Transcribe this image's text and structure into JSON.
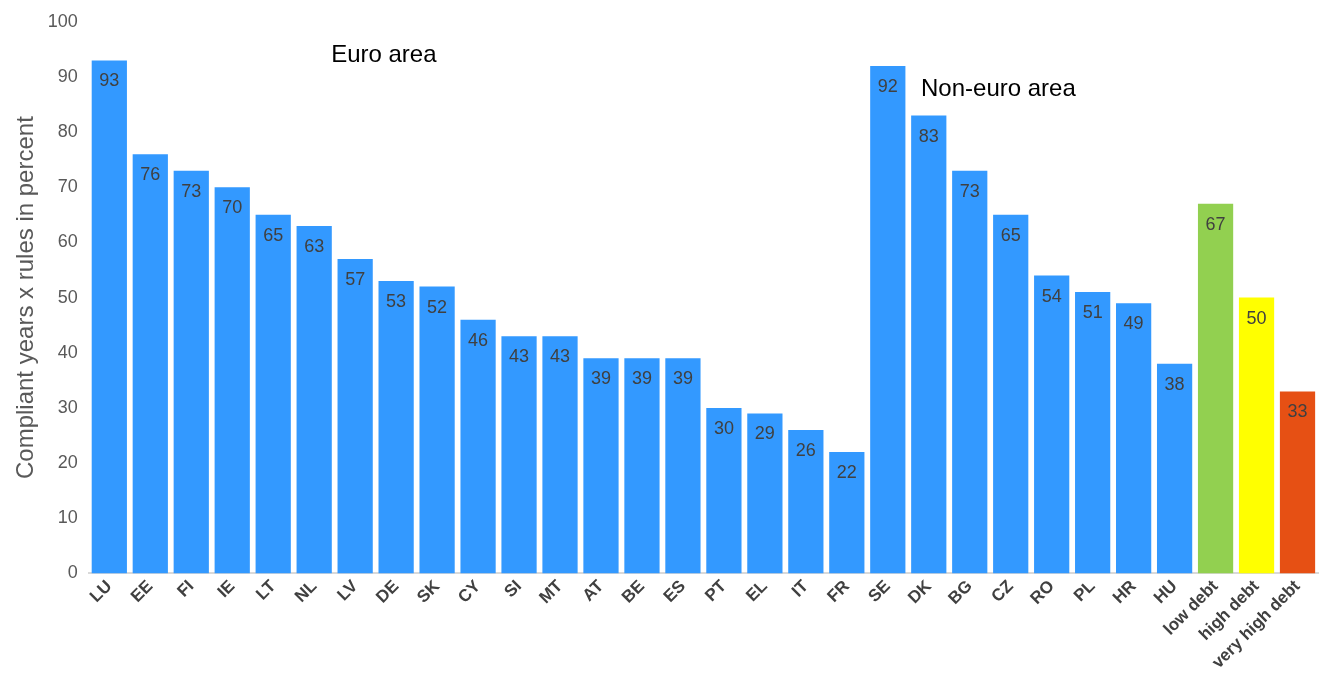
{
  "chart_data": {
    "type": "bar",
    "ylabel": "Compliant years x rules in percent",
    "categories": [
      "LU",
      "EE",
      "FI",
      "IE",
      "LT",
      "NL",
      "LV",
      "DE",
      "SK",
      "CY",
      "SI",
      "MT",
      "AT",
      "BE",
      "ES",
      "PT",
      "EL",
      "IT",
      "FR",
      "SE",
      "DK",
      "BG",
      "CZ",
      "RO",
      "PL",
      "HR",
      "HU",
      "low debt",
      "high debt",
      "very high debt"
    ],
    "values": [
      93,
      76,
      73,
      70,
      65,
      63,
      57,
      53,
      52,
      46,
      43,
      43,
      39,
      39,
      39,
      30,
      29,
      26,
      22,
      92,
      83,
      73,
      65,
      54,
      51,
      49,
      38,
      67,
      50,
      33
    ],
    "colors": [
      "#3399ff",
      "#3399ff",
      "#3399ff",
      "#3399ff",
      "#3399ff",
      "#3399ff",
      "#3399ff",
      "#3399ff",
      "#3399ff",
      "#3399ff",
      "#3399ff",
      "#3399ff",
      "#3399ff",
      "#3399ff",
      "#3399ff",
      "#3399ff",
      "#3399ff",
      "#3399ff",
      "#3399ff",
      "#3399ff",
      "#3399ff",
      "#3399ff",
      "#3399ff",
      "#3399ff",
      "#3399ff",
      "#3399ff",
      "#3399ff",
      "#92d050",
      "#ffff00",
      "#e65014"
    ],
    "ylim": [
      0,
      100
    ],
    "yticks": [
      0,
      10,
      20,
      30,
      40,
      50,
      60,
      70,
      80,
      90,
      100
    ],
    "grid": false,
    "legend": false,
    "data_labels": true,
    "annotations": [
      "Euro area",
      "Non-euro area"
    ]
  }
}
